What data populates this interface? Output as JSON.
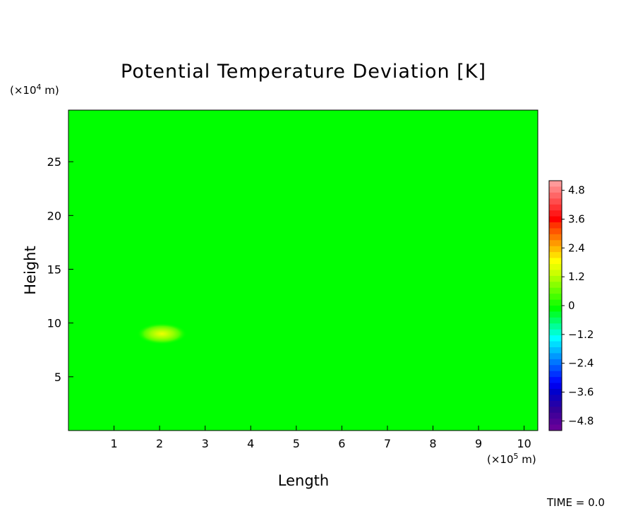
{
  "chart_data": {
    "type": "heatmap",
    "title": "Potential Temperature Deviation [K]",
    "xlabel": "Length",
    "ylabel": "Height",
    "x_unit": {
      "prefix": "(×10",
      "exp": "5",
      "suffix": " m)"
    },
    "y_unit": {
      "prefix": "(×10",
      "exp": "4",
      "suffix": " m)"
    },
    "xlim": [
      0,
      10.3
    ],
    "ylim": [
      0,
      29.8
    ],
    "x_ticks": [
      1,
      2,
      3,
      4,
      5,
      6,
      7,
      8,
      9,
      10
    ],
    "x_tick_labels": [
      "1",
      "2",
      "3",
      "4",
      "5",
      "6",
      "7",
      "8",
      "9",
      "10"
    ],
    "y_ticks": [
      5,
      10,
      15,
      20,
      25
    ],
    "y_tick_labels": [
      "5",
      "10",
      "15",
      "20",
      "25"
    ],
    "background_value": 0,
    "background_color": "#00ff00",
    "features": [
      {
        "kind": "warm-bubble",
        "x_center": 2.05,
        "y_center": 9.0,
        "x_radius": 0.55,
        "y_radius": 1.0,
        "peak_value": 1.0
      }
    ],
    "colorbar": {
      "min": -5.2,
      "max": 5.2,
      "tick_values": [
        4.8,
        3.6,
        2.4,
        1.2,
        0,
        -1.2,
        -2.4,
        -3.6,
        -4.8
      ],
      "tick_labels": [
        "4.8",
        "3.6",
        "2.4",
        "1.2",
        "0",
        "−1.2",
        "−2.4",
        "−3.6",
        "−4.8"
      ],
      "colors": [
        "#ff9999",
        "#ff8080",
        "#ff6666",
        "#ff4d4d",
        "#ff3333",
        "#ff1a1a",
        "#ff0000",
        "#ff3300",
        "#ff5500",
        "#ff7700",
        "#ff9900",
        "#ffbb00",
        "#ffdd00",
        "#ffff00",
        "#e6ff00",
        "#ccff00",
        "#aaff00",
        "#88ff00",
        "#66ff00",
        "#44ff00",
        "#22ff00",
        "#00ff00",
        "#00ff33",
        "#00ff66",
        "#00ff99",
        "#00ffcc",
        "#00ffff",
        "#00ddff",
        "#00bbff",
        "#0099ff",
        "#0077ff",
        "#0055ff",
        "#0033ff",
        "#0011ff",
        "#0000ee",
        "#0000cc",
        "#1100bb",
        "#2200aa",
        "#330099",
        "#440099",
        "#550099",
        "#660099"
      ]
    }
  },
  "footer": {
    "time_label": "TIME = 0.0"
  }
}
